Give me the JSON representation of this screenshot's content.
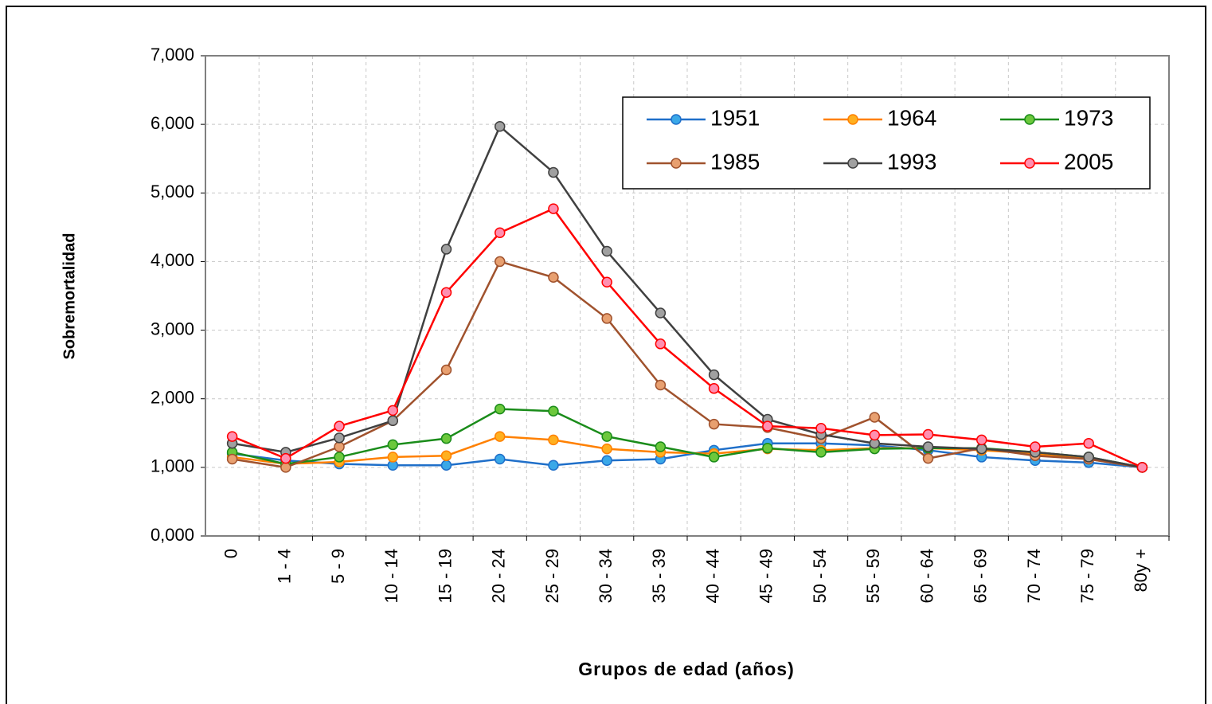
{
  "chart_data": {
    "type": "line",
    "x_label": "Grupos de edad (años)",
    "y_label": "Sobremortalidad",
    "categories": [
      "0",
      "1 - 4",
      "5 - 9",
      "10 - 14",
      "15 - 19",
      "20 - 24",
      "25 - 29",
      "30 - 34",
      "35 - 39",
      "40 - 44",
      "45 - 49",
      "50 - 54",
      "55 - 59",
      "60 - 64",
      "65 - 69",
      "70 - 74",
      "75 - 79",
      "80y +"
    ],
    "series": [
      {
        "name": "1951",
        "color": "#1f6fc9",
        "marker_color": "#3aa8e8",
        "values": [
          1.2,
          1.1,
          1.05,
          1.03,
          1.03,
          1.12,
          1.03,
          1.1,
          1.12,
          1.25,
          1.35,
          1.35,
          1.32,
          1.25,
          1.15,
          1.1,
          1.07,
          1.0
        ]
      },
      {
        "name": "1964",
        "color": "#ff8000",
        "marker_color": "#ffb020",
        "values": [
          1.15,
          1.05,
          1.08,
          1.15,
          1.17,
          1.45,
          1.4,
          1.27,
          1.22,
          1.2,
          1.27,
          1.25,
          1.28,
          1.28,
          1.25,
          1.2,
          1.12,
          1.0
        ]
      },
      {
        "name": "1973",
        "color": "#1a8c1a",
        "marker_color": "#6cc83c",
        "values": [
          1.22,
          1.05,
          1.15,
          1.33,
          1.42,
          1.85,
          1.82,
          1.45,
          1.3,
          1.15,
          1.28,
          1.22,
          1.27,
          1.28,
          1.28,
          1.22,
          1.15,
          1.0
        ]
      },
      {
        "name": "1985",
        "color": "#a0522d",
        "marker_color": "#e8a070",
        "values": [
          1.12,
          1.0,
          1.3,
          1.68,
          2.42,
          4.0,
          3.77,
          3.17,
          2.2,
          1.63,
          1.58,
          1.42,
          1.73,
          1.13,
          1.28,
          1.17,
          1.12,
          1.0
        ]
      },
      {
        "name": "1993",
        "color": "#404040",
        "marker_color": "#a0a0a0",
        "values": [
          1.35,
          1.22,
          1.43,
          1.68,
          4.18,
          5.97,
          5.3,
          4.15,
          3.25,
          2.35,
          1.7,
          1.48,
          1.35,
          1.3,
          1.27,
          1.22,
          1.15,
          1.0
        ]
      },
      {
        "name": "2005",
        "color": "#ff0000",
        "marker_color": "#ff8fb0",
        "values": [
          1.45,
          1.13,
          1.6,
          1.83,
          3.55,
          4.42,
          4.77,
          3.7,
          2.8,
          2.15,
          1.6,
          1.57,
          1.47,
          1.48,
          1.4,
          1.3,
          1.35,
          1.0
        ]
      }
    ],
    "ylim": [
      0,
      7
    ],
    "yticks": [
      {
        "value": 0,
        "label": "0,000"
      },
      {
        "value": 1,
        "label": "1,000"
      },
      {
        "value": 2,
        "label": "2,000"
      },
      {
        "value": 3,
        "label": "3,000"
      },
      {
        "value": 4,
        "label": "4,000"
      },
      {
        "value": 5,
        "label": "5,000"
      },
      {
        "value": 6,
        "label": "6,000"
      },
      {
        "value": 7,
        "label": "7,000"
      }
    ],
    "grid": true
  }
}
